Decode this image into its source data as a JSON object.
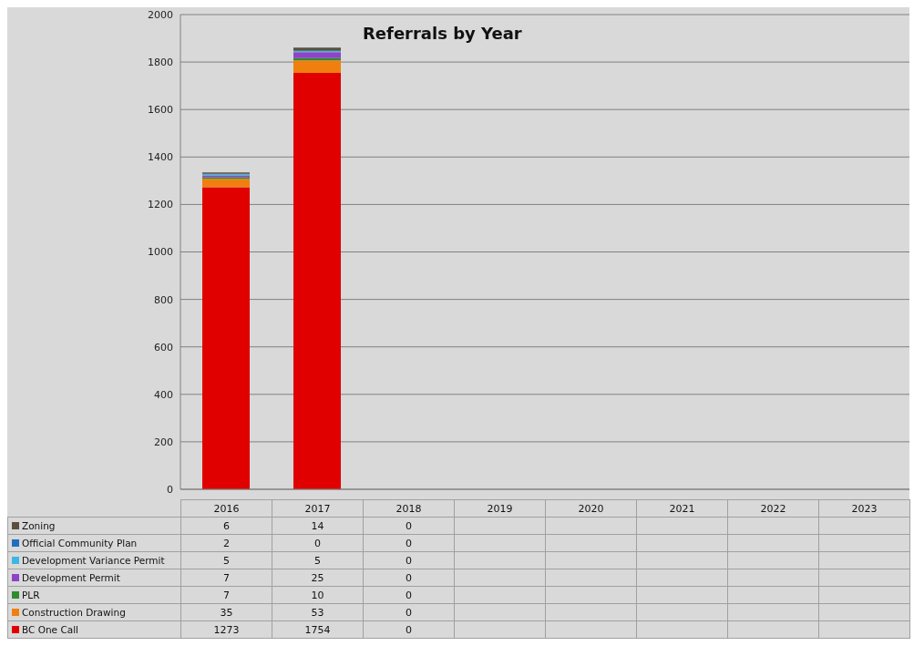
{
  "chart_data": {
    "type": "bar",
    "title": "Referrals by Year",
    "stacked": true,
    "categories": [
      "2016",
      "2017",
      "2018",
      "2019",
      "2020",
      "2021",
      "2022",
      "2023"
    ],
    "series": [
      {
        "name": "BC One Call",
        "color": "#e00000",
        "values": [
          1273,
          1754,
          0,
          null,
          null,
          null,
          null,
          null
        ]
      },
      {
        "name": "Construction Drawing",
        "color": "#f07f10",
        "values": [
          35,
          53,
          0,
          null,
          null,
          null,
          null,
          null
        ]
      },
      {
        "name": "PLR",
        "color": "#2e8b2e",
        "values": [
          7,
          10,
          0,
          null,
          null,
          null,
          null,
          null
        ]
      },
      {
        "name": "Development Permit",
        "color": "#8e44c8",
        "values": [
          7,
          25,
          0,
          null,
          null,
          null,
          null,
          null
        ]
      },
      {
        "name": "Development Variance Permit",
        "color": "#3cb8e0",
        "values": [
          5,
          5,
          0,
          null,
          null,
          null,
          null,
          null
        ]
      },
      {
        "name": "Official Community Plan",
        "color": "#1f6fc0",
        "values": [
          2,
          0,
          0,
          null,
          null,
          null,
          null,
          null
        ]
      },
      {
        "name": "Zoning",
        "color": "#5a5040",
        "values": [
          6,
          14,
          0,
          null,
          null,
          null,
          null,
          null
        ]
      }
    ],
    "ylim": [
      0,
      2000
    ],
    "yticks": [
      0,
      200,
      400,
      600,
      800,
      1000,
      1200,
      1400,
      1600,
      1800,
      2000
    ],
    "grid": "y",
    "legend": "bottom",
    "data_labels": true
  }
}
